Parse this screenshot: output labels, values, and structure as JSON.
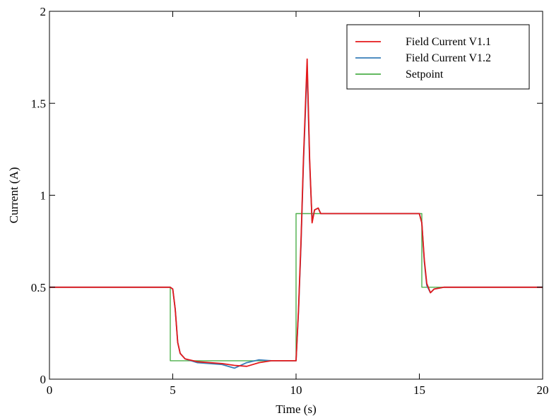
{
  "chart_data": {
    "type": "line",
    "title": "",
    "xlabel": "Time (s)",
    "ylabel": "Current (A)",
    "xlim": [
      0,
      20
    ],
    "ylim": [
      0,
      2
    ],
    "x_ticks": [
      0,
      5,
      10,
      15,
      20
    ],
    "y_ticks": [
      0,
      0.5,
      1,
      1.5,
      2
    ],
    "x_tick_labels": [
      "0",
      "5",
      "10",
      "15",
      "20"
    ],
    "y_tick_labels": [
      "0",
      "0.5",
      "1",
      "1.5",
      "2"
    ],
    "grid": false,
    "legend_position": "top-right",
    "series": [
      {
        "name": "Field Current V1.1",
        "color": "#e41a1c",
        "x": [
          0,
          1,
          2,
          3,
          4,
          4.9,
          5.0,
          5.1,
          5.2,
          5.3,
          5.5,
          6,
          7,
          7.5,
          8,
          8.5,
          9,
          9.5,
          10,
          10.1,
          10.2,
          10.3,
          10.45,
          10.55,
          10.65,
          10.75,
          10.9,
          11,
          12,
          13,
          14,
          15,
          15.1,
          15.2,
          15.3,
          15.45,
          15.6,
          16,
          17,
          18,
          19,
          20
        ],
        "y": [
          0.5,
          0.5,
          0.5,
          0.5,
          0.5,
          0.5,
          0.49,
          0.38,
          0.2,
          0.14,
          0.11,
          0.095,
          0.085,
          0.075,
          0.07,
          0.09,
          0.1,
          0.1,
          0.1,
          0.38,
          0.75,
          1.2,
          1.74,
          1.2,
          0.85,
          0.92,
          0.93,
          0.9,
          0.9,
          0.9,
          0.9,
          0.9,
          0.85,
          0.65,
          0.52,
          0.47,
          0.49,
          0.5,
          0.5,
          0.5,
          0.5,
          0.5
        ]
      },
      {
        "name": "Field Current V1.2",
        "color": "#377eb8",
        "x": [
          0,
          1,
          2,
          3,
          4,
          4.9,
          5.0,
          5.1,
          5.2,
          5.3,
          5.5,
          6,
          7,
          7.5,
          8,
          8.5,
          9,
          9.5,
          10,
          10.1,
          10.2,
          10.3,
          10.45,
          10.55,
          10.65,
          10.75,
          10.9,
          11,
          12,
          13,
          14,
          15,
          15.1,
          15.2,
          15.3,
          15.45,
          15.6,
          16,
          17,
          18,
          19,
          20
        ],
        "y": [
          0.5,
          0.5,
          0.5,
          0.5,
          0.5,
          0.5,
          0.49,
          0.38,
          0.2,
          0.14,
          0.11,
          0.09,
          0.08,
          0.06,
          0.09,
          0.105,
          0.1,
          0.1,
          0.1,
          0.37,
          0.73,
          1.18,
          1.7,
          1.18,
          0.86,
          0.92,
          0.93,
          0.9,
          0.9,
          0.9,
          0.9,
          0.9,
          0.85,
          0.64,
          0.51,
          0.47,
          0.49,
          0.5,
          0.5,
          0.5,
          0.5,
          0.5
        ]
      },
      {
        "name": "Setpoint",
        "color": "#4daf4a",
        "x": [
          0,
          4.9,
          4.9,
          10,
          10,
          15.1,
          15.1,
          20
        ],
        "y": [
          0.5,
          0.5,
          0.1,
          0.1,
          0.9,
          0.9,
          0.5,
          0.5
        ]
      }
    ]
  }
}
